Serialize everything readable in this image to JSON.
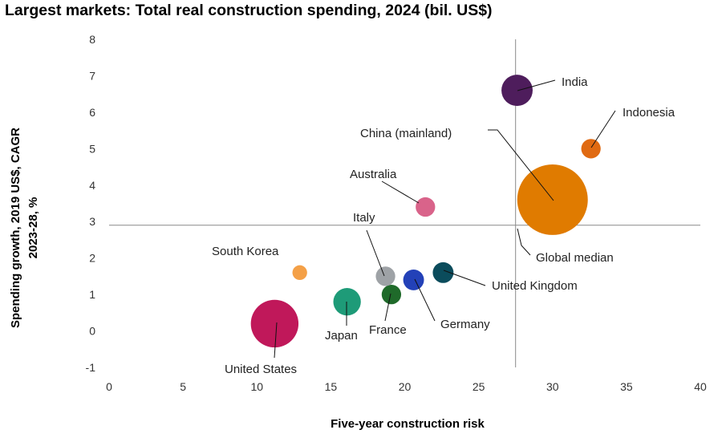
{
  "title": "Largest markets: Total real construction spending, 2024 (bil. US$)",
  "chart_data": {
    "type": "scatter",
    "subtype": "bubble",
    "title": "Largest markets: Total real construction spending, 2024 (bil. US$)",
    "xlabel": "Five-year construction  risk",
    "ylabel_lines": [
      "Spending growth, 2019 US$, CAGR",
      "2023-28, %"
    ],
    "xlim": [
      0,
      40
    ],
    "ylim": [
      -1,
      8
    ],
    "xticks": [
      0,
      5,
      10,
      15,
      20,
      25,
      30,
      35,
      40
    ],
    "yticks": [
      8,
      7,
      6,
      5,
      4,
      3,
      2,
      1,
      0,
      -1
    ],
    "grid": false,
    "legend": "none",
    "reference_lines": [
      {
        "axis": "x",
        "value": 27.5,
        "label": "Global median"
      },
      {
        "axis": "y",
        "value": 2.9
      }
    ],
    "points": [
      {
        "name": "United States",
        "x": 11.2,
        "y": 0.2,
        "size": 2.1,
        "color": "#C0185A"
      },
      {
        "name": "South Korea",
        "x": 12.9,
        "y": 1.6,
        "size": 0.2,
        "color": "#F4A047"
      },
      {
        "name": "Japan",
        "x": 16.1,
        "y": 0.8,
        "size": 0.7,
        "color": "#1E9B78"
      },
      {
        "name": "France",
        "x": 19.1,
        "y": 1.0,
        "size": 0.35,
        "color": "#1F6A2A"
      },
      {
        "name": "Italy",
        "x": 18.7,
        "y": 1.5,
        "size": 0.35,
        "color": "#9EA2A6"
      },
      {
        "name": "Germany",
        "x": 20.6,
        "y": 1.4,
        "size": 0.4,
        "color": "#2341B8"
      },
      {
        "name": "United Kingdom",
        "x": 22.6,
        "y": 1.6,
        "size": 0.4,
        "color": "#0B4C5C"
      },
      {
        "name": "Australia",
        "x": 21.4,
        "y": 3.4,
        "size": 0.35,
        "color": "#D9638A"
      },
      {
        "name": "India",
        "x": 27.6,
        "y": 6.6,
        "size": 0.9,
        "color": "#4E1D5C"
      },
      {
        "name": "Indonesia",
        "x": 32.6,
        "y": 5.0,
        "size": 0.35,
        "color": "#E06A12"
      },
      {
        "name": "China (mainland)",
        "x": 30.0,
        "y": 3.6,
        "size": 4.6,
        "color": "#E07B00"
      }
    ]
  }
}
